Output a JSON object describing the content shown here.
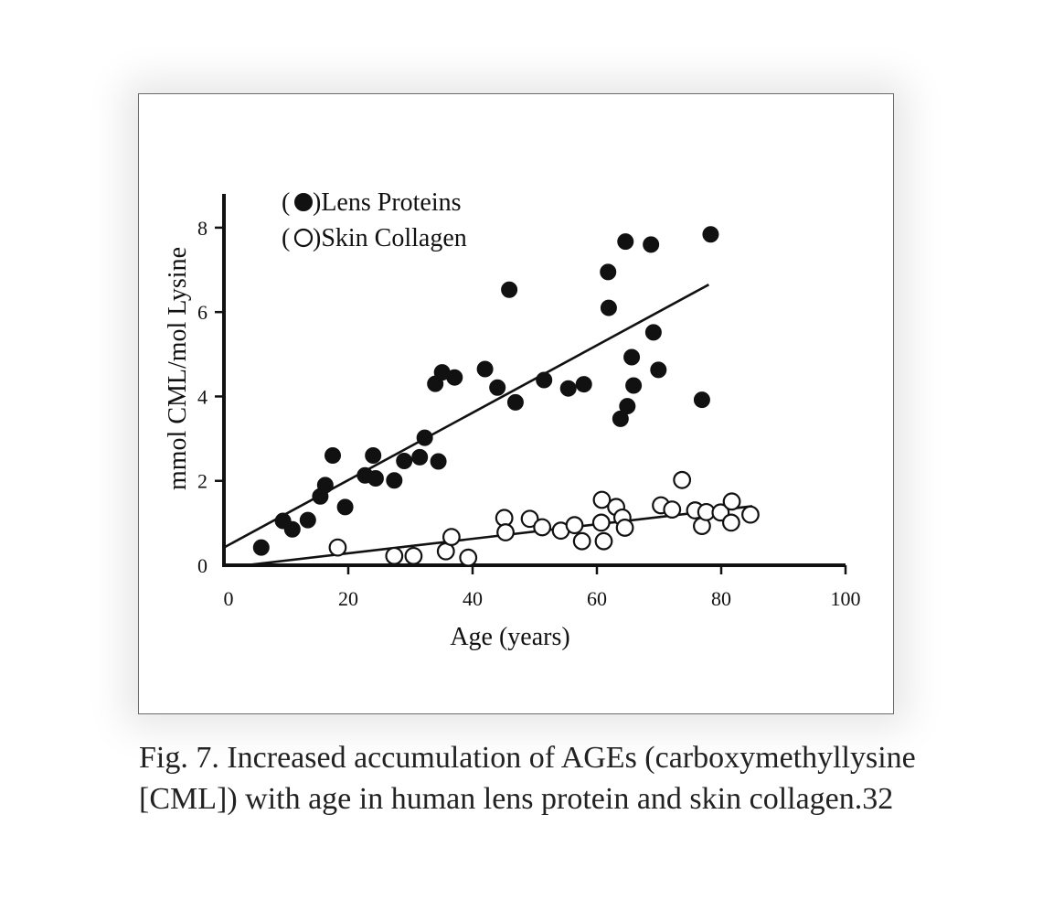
{
  "caption": {
    "line1": "Fig. 7.  Increased accumulation of AGEs (carboxymethyllysine",
    "line2": "[CML]) with age in human lens protein and skin collagen.32"
  },
  "chart_data": {
    "type": "scatter",
    "title": "",
    "xlabel": "Age (years)",
    "ylabel": "mmol CML/mol Lysine",
    "xlim": [
      0,
      100
    ],
    "ylim": [
      0,
      8.8
    ],
    "x_ticks": [
      0,
      20,
      40,
      60,
      80,
      100
    ],
    "y_ticks": [
      0,
      2,
      4,
      6,
      8
    ],
    "grid": false,
    "legend_position": "top-left",
    "legend": [
      {
        "prefix": "(",
        "suffix": ")Lens Proteins",
        "marker": "filled-circle"
      },
      {
        "prefix": "(",
        "suffix": ")Skin Collagen",
        "marker": "open-circle"
      }
    ],
    "series": [
      {
        "name": "Lens Proteins",
        "marker": "filled",
        "color": "#111111",
        "points": [
          [
            6,
            0.42
          ],
          [
            9.5,
            1.05
          ],
          [
            11,
            0.85
          ],
          [
            13.5,
            1.07
          ],
          [
            15.5,
            1.63
          ],
          [
            16.3,
            1.9
          ],
          [
            17.5,
            2.6
          ],
          [
            19.5,
            1.38
          ],
          [
            22.7,
            2.13
          ],
          [
            24,
            2.6
          ],
          [
            24.4,
            2.06
          ],
          [
            27.4,
            2.01
          ],
          [
            29,
            2.47
          ],
          [
            31.5,
            2.56
          ],
          [
            32.3,
            3.02
          ],
          [
            34,
            4.3
          ],
          [
            34.5,
            2.46
          ],
          [
            35.1,
            4.57
          ],
          [
            37.1,
            4.45
          ],
          [
            42,
            4.65
          ],
          [
            44,
            4.21
          ],
          [
            45.9,
            6.53
          ],
          [
            46.9,
            3.86
          ],
          [
            51.5,
            4.39
          ],
          [
            55.4,
            4.19
          ],
          [
            57.9,
            4.29
          ],
          [
            61.8,
            6.95
          ],
          [
            61.9,
            6.1
          ],
          [
            63.8,
            3.47
          ],
          [
            64.6,
            7.67
          ],
          [
            64.9,
            3.77
          ],
          [
            65.6,
            4.93
          ],
          [
            65.9,
            4.26
          ],
          [
            68.7,
            7.6
          ],
          [
            69.1,
            5.52
          ],
          [
            69.9,
            4.63
          ],
          [
            76.9,
            3.92
          ],
          [
            78.3,
            7.84
          ]
        ],
        "trend": [
          [
            0,
            0.42
          ],
          [
            78,
            6.65
          ]
        ]
      },
      {
        "name": "Skin Collagen",
        "marker": "open",
        "color": "#111111",
        "points": [
          [
            18.3,
            0.42
          ],
          [
            27.4,
            0.22
          ],
          [
            30.5,
            0.22
          ],
          [
            35.7,
            0.33
          ],
          [
            36.6,
            0.67
          ],
          [
            39.3,
            0.18
          ],
          [
            45.1,
            1.12
          ],
          [
            45.3,
            0.78
          ],
          [
            49.2,
            1.1
          ],
          [
            51.2,
            0.9
          ],
          [
            54.2,
            0.82
          ],
          [
            56.4,
            0.95
          ],
          [
            57.6,
            0.57
          ],
          [
            60.8,
            1.55
          ],
          [
            60.7,
            1.01
          ],
          [
            61.1,
            0.57
          ],
          [
            63.1,
            1.38
          ],
          [
            64.1,
            1.13
          ],
          [
            64.5,
            0.89
          ],
          [
            70.3,
            1.42
          ],
          [
            72.1,
            1.32
          ],
          [
            73.7,
            2.02
          ],
          [
            75.8,
            1.3
          ],
          [
            76.9,
            0.93
          ],
          [
            77.6,
            1.26
          ],
          [
            79.9,
            1.25
          ],
          [
            81.7,
            1.51
          ],
          [
            81.6,
            1.01
          ],
          [
            84.7,
            1.2
          ]
        ],
        "trend": [
          [
            3.5,
            0.0
          ],
          [
            85,
            1.4
          ]
        ]
      }
    ]
  }
}
